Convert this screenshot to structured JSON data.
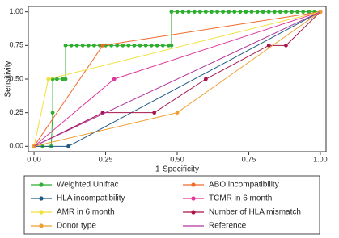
{
  "chart_data": {
    "type": "line",
    "x_label": "1-Specificity",
    "y_label": "Sensitivity",
    "xlim": [
      -0.02,
      1.02
    ],
    "ylim": [
      -0.04,
      1.04
    ],
    "xticks": [
      {
        "value": 0,
        "label": "0.00"
      },
      {
        "value": 0.25,
        "label": "0.25"
      },
      {
        "value": 0.5,
        "label": "0.50"
      },
      {
        "value": 0.75,
        "label": "0.75"
      },
      {
        "value": 1,
        "label": "1.00"
      }
    ],
    "yticks": [
      {
        "value": 0,
        "label": "0.00"
      },
      {
        "value": 0.25,
        "label": "0.25"
      },
      {
        "value": 0.5,
        "label": "0.50"
      },
      {
        "value": 0.75,
        "label": "0.75"
      },
      {
        "value": 1,
        "label": "1.00"
      }
    ],
    "series": [
      {
        "name": "Weighted Unifrac",
        "color": "#2fae2f",
        "markers": true,
        "x": [
          0,
          0.03,
          0.06,
          0.065,
          0.065,
          0.08,
          0.1,
          0.11,
          0.11,
          0.13,
          0.15,
          0.17,
          0.19,
          0.21,
          0.23,
          0.25,
          0.27,
          0.29,
          0.31,
          0.33,
          0.35,
          0.37,
          0.39,
          0.41,
          0.43,
          0.45,
          0.47,
          0.48,
          0.48,
          0.5,
          0.52,
          0.54,
          0.56,
          0.58,
          0.6,
          0.62,
          0.64,
          0.66,
          0.68,
          0.7,
          0.72,
          0.74,
          0.76,
          0.78,
          0.8,
          0.82,
          0.84,
          0.86,
          0.88,
          0.9,
          0.92,
          0.94,
          0.96,
          0.98,
          1
        ],
        "values": [
          0,
          0,
          0,
          0.25,
          0.5,
          0.5,
          0.5,
          0.5,
          0.75,
          0.75,
          0.75,
          0.75,
          0.75,
          0.75,
          0.75,
          0.75,
          0.75,
          0.75,
          0.75,
          0.75,
          0.75,
          0.75,
          0.75,
          0.75,
          0.75,
          0.75,
          0.75,
          0.75,
          1,
          1,
          1,
          1,
          1,
          1,
          1,
          1,
          1,
          1,
          1,
          1,
          1,
          1,
          1,
          1,
          1,
          1,
          1,
          1,
          1,
          1,
          1,
          1,
          1,
          1,
          1
        ]
      },
      {
        "name": "ABO incompatibility",
        "color": "#f06a2a",
        "markers": true,
        "x": [
          0,
          0.24,
          1
        ],
        "values": [
          0,
          0.75,
          1
        ]
      },
      {
        "name": "HLA incompatibility",
        "color": "#1f5a87",
        "markers": true,
        "x": [
          0,
          0.12,
          1
        ],
        "values": [
          0,
          0,
          1
        ]
      },
      {
        "name": "TCMR in 6 month",
        "color": "#e0359b",
        "markers": true,
        "x": [
          0,
          0.28,
          1
        ],
        "values": [
          0,
          0.5,
          1
        ]
      },
      {
        "name": "AMR in 6 month",
        "color": "#f2e03a",
        "markers": true,
        "x": [
          0,
          0.05,
          1
        ],
        "values": [
          0,
          0.5,
          1
        ]
      },
      {
        "name": "Number of HLA mismatch",
        "color": "#a8154a",
        "markers": true,
        "x": [
          0,
          0.24,
          0.42,
          0.6,
          0.82,
          0.88,
          1
        ],
        "values": [
          0,
          0.25,
          0.25,
          0.5,
          0.75,
          0.75,
          1
        ]
      },
      {
        "name": "Donor type",
        "color": "#f0a030",
        "markers": true,
        "x": [
          0,
          0.5,
          1
        ],
        "values": [
          0,
          0.25,
          1
        ]
      },
      {
        "name": "Reference",
        "color": "#b0369e",
        "markers": false,
        "x": [
          0,
          1
        ],
        "values": [
          0,
          1
        ]
      }
    ]
  }
}
